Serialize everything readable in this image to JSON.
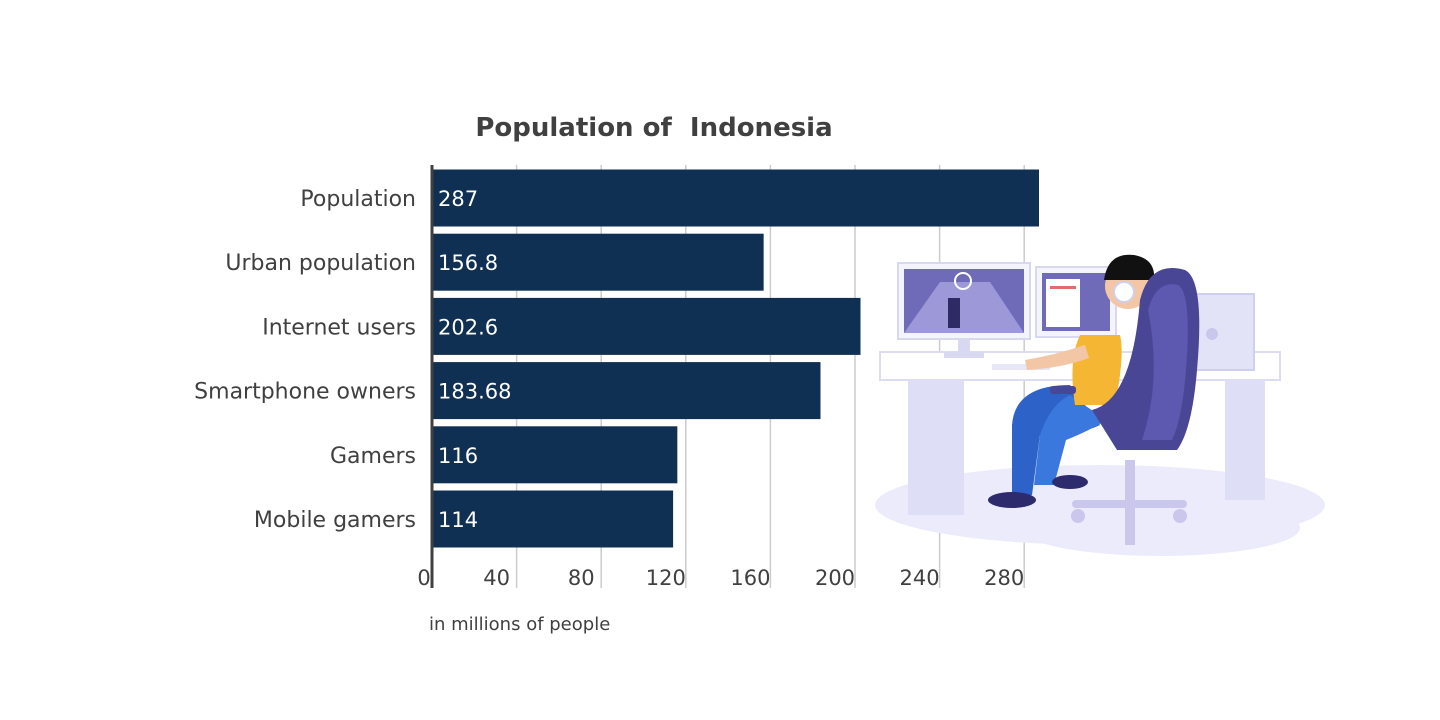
{
  "chart_data": {
    "type": "bar",
    "orientation": "horizontal",
    "title": "Population of  Indonesia",
    "categories": [
      "Population",
      "Urban population",
      "Internet users",
      "Smartphone owners",
      "Gamers",
      "Mobile gamers"
    ],
    "values": [
      287,
      156.8,
      202.6,
      183.68,
      116,
      114
    ],
    "value_labels": [
      "287",
      "156.8",
      "202.6",
      "183.68",
      "116",
      "114"
    ],
    "xlim": [
      0,
      300
    ],
    "x_ticks": [
      "0",
      "40",
      "80",
      "120",
      "160",
      "200",
      "240",
      "280"
    ],
    "x_tick_values": [
      0,
      40,
      80,
      120,
      160,
      200,
      240,
      280
    ],
    "unit_note": "in millions of people",
    "grid": true,
    "colors": {
      "bar": "#0f3052",
      "grid": "#cccccc",
      "axis": "#404040",
      "text": "#404040"
    }
  },
  "illustration": {
    "subject": "gamer-at-desk-illustration"
  }
}
